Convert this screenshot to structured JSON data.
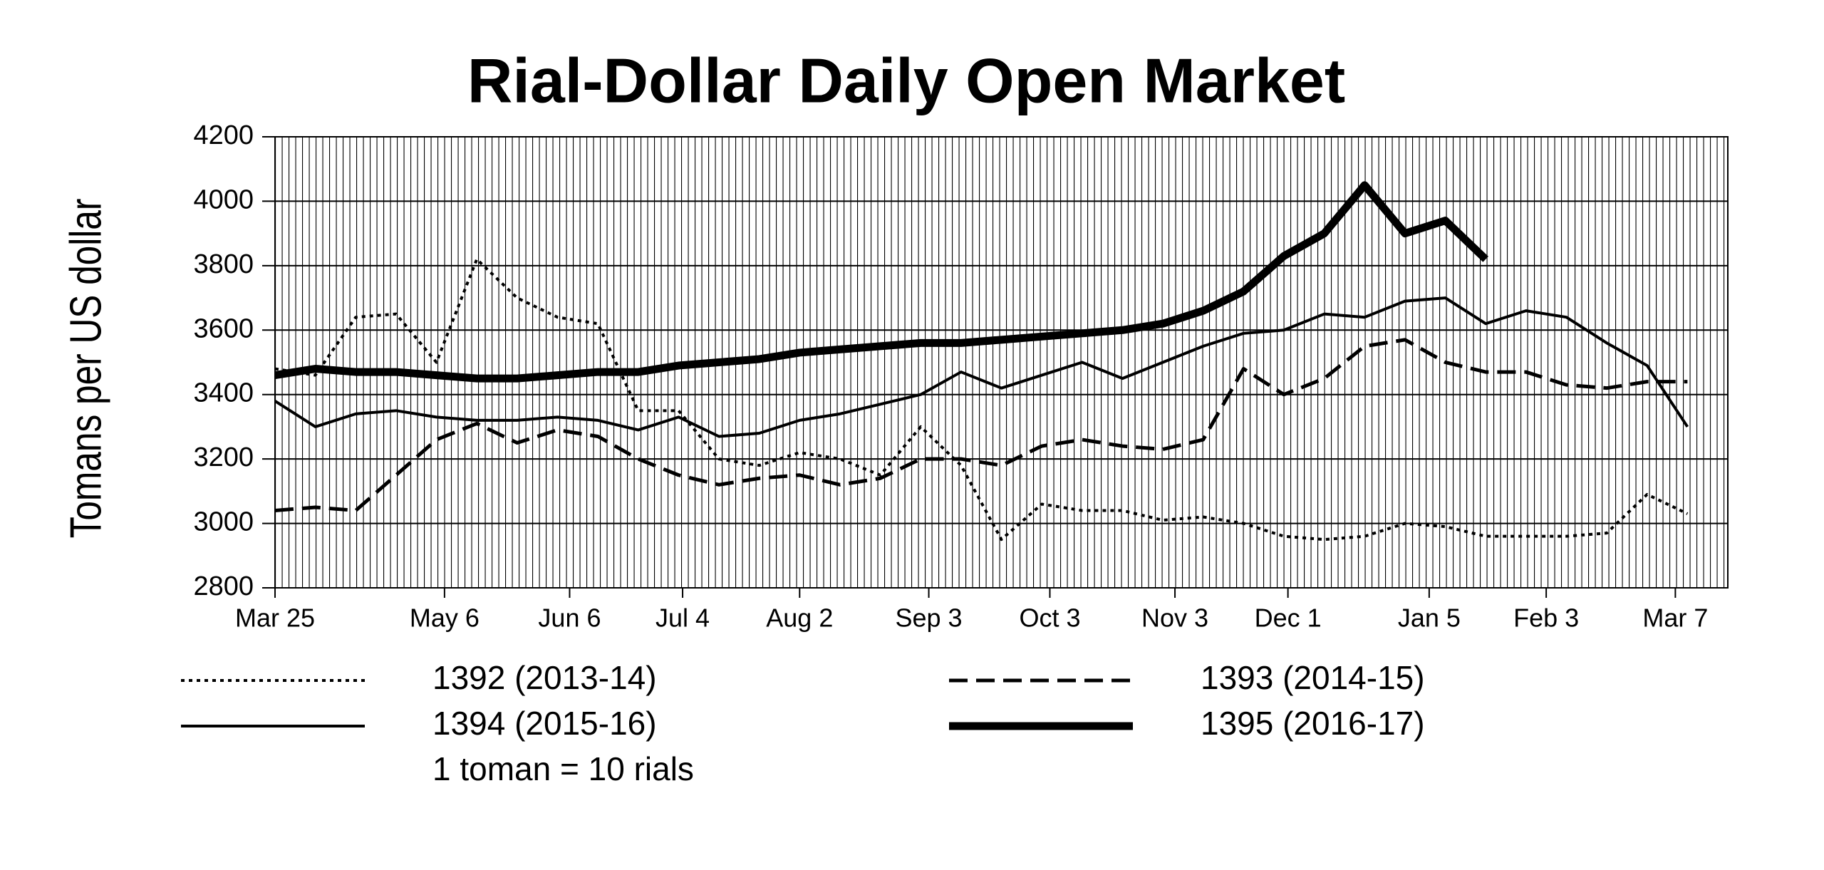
{
  "chart_data": {
    "type": "line",
    "title": "Rial-Dollar Daily Open Market",
    "y_label": "Tomans per US dollar",
    "note": "1 toman = 10 rials",
    "x": [
      0,
      10,
      20,
      30,
      40,
      50,
      60,
      70,
      80,
      90,
      100,
      110,
      120,
      130,
      140,
      150,
      160,
      170,
      180,
      190,
      200,
      210,
      220,
      230,
      240,
      250,
      260,
      270,
      280,
      290,
      300,
      310,
      320,
      330,
      340,
      350
    ],
    "xlim": [
      0,
      360
    ],
    "xticks": [
      {
        "value": 0,
        "label": "Mar 25"
      },
      {
        "value": 42,
        "label": "May 6"
      },
      {
        "value": 73,
        "label": "Jun 6"
      },
      {
        "value": 101,
        "label": "Jul 4"
      },
      {
        "value": 130,
        "label": "Aug 2"
      },
      {
        "value": 162,
        "label": "Sep 3"
      },
      {
        "value": 192,
        "label": "Oct 3"
      },
      {
        "value": 223,
        "label": "Nov 3"
      },
      {
        "value": 251,
        "label": "Dec 1"
      },
      {
        "value": 286,
        "label": "Jan 5"
      },
      {
        "value": 315,
        "label": "Feb 3"
      },
      {
        "value": 347,
        "label": "Mar 7"
      }
    ],
    "ylim": [
      2800,
      4200
    ],
    "yticks": [
      2800,
      3000,
      3200,
      3400,
      3600,
      3800,
      4000,
      4200
    ],
    "grid": true,
    "series": [
      {
        "name": "1392 (2013-14)",
        "color": "#000000",
        "line_style": "dotted",
        "values": [
          3480,
          3460,
          3640,
          3650,
          3500,
          3820,
          3700,
          3640,
          3620,
          3350,
          3350,
          3200,
          3180,
          3220,
          3200,
          3150,
          3300,
          3180,
          2950,
          3060,
          3040,
          3040,
          3010,
          3020,
          3000,
          2960,
          2950,
          2960,
          3000,
          2990,
          2960,
          2960,
          2960,
          2970,
          3090,
          3030
        ]
      },
      {
        "name": "1393 (2014-15)",
        "color": "#000000",
        "line_style": "dashed",
        "values": [
          3040,
          3050,
          3040,
          3150,
          3260,
          3310,
          3250,
          3290,
          3270,
          3200,
          3150,
          3120,
          3140,
          3150,
          3120,
          3140,
          3200,
          3200,
          3180,
          3240,
          3260,
          3240,
          3230,
          3260,
          3480,
          3400,
          3450,
          3550,
          3570,
          3500,
          3470,
          3470,
          3430,
          3420,
          3440,
          3440
        ]
      },
      {
        "name": "1394 (2015-16)",
        "color": "#000000",
        "line_style": "solid",
        "values": [
          3380,
          3300,
          3340,
          3350,
          3330,
          3320,
          3320,
          3330,
          3320,
          3290,
          3330,
          3270,
          3280,
          3320,
          3340,
          3370,
          3400,
          3470,
          3420,
          3460,
          3500,
          3450,
          3500,
          3550,
          3590,
          3600,
          3650,
          3640,
          3690,
          3700,
          3620,
          3660,
          3640,
          3560,
          3490,
          3300
        ]
      },
      {
        "name": "1395 (2016-17)",
        "color": "#000000",
        "line_style": "thick",
        "values": [
          3460,
          3480,
          3470,
          3470,
          3460,
          3450,
          3450,
          3460,
          3470,
          3470,
          3490,
          3500,
          3510,
          3530,
          3540,
          3550,
          3560,
          3560,
          3570,
          3580,
          3590,
          3600,
          3620,
          3660,
          3720,
          3830,
          3900,
          4050,
          3900,
          3940,
          3820,
          null,
          null,
          null,
          null,
          null
        ]
      }
    ]
  }
}
